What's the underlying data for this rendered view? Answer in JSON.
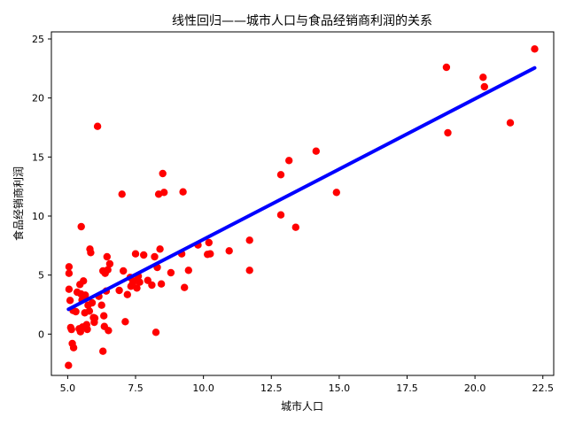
{
  "chart_data": {
    "type": "scatter",
    "title": "线性回归——城市人口与食品经销商利润的关系",
    "xlabel": "城市人口",
    "ylabel": "食品经销商利润",
    "xlim": [
      4.4,
      22.9
    ],
    "ylim": [
      -3.5,
      25.6
    ],
    "xticks": [
      5.0,
      7.5,
      10.0,
      12.5,
      15.0,
      17.5,
      20.0,
      22.5
    ],
    "xtick_labels": [
      "5.0",
      "7.5",
      "10.0",
      "12.5",
      "15.0",
      "17.5",
      "20.0",
      "22.5"
    ],
    "yticks": [
      0,
      5,
      10,
      15,
      20,
      25
    ],
    "ytick_labels": [
      "0",
      "5",
      "10",
      "15",
      "20",
      "25"
    ],
    "grid": false,
    "colors": {
      "points": "#ff0000",
      "line": "#0000ff"
    },
    "scatter_points": [
      [
        5.03,
        -2.65
      ],
      [
        5.05,
        3.8
      ],
      [
        5.05,
        5.7
      ],
      [
        5.05,
        5.15
      ],
      [
        5.09,
        2.85
      ],
      [
        5.11,
        0.56
      ],
      [
        5.14,
        0.39
      ],
      [
        5.17,
        -0.8
      ],
      [
        5.2,
        2.0
      ],
      [
        5.22,
        -1.15
      ],
      [
        5.3,
        1.9
      ],
      [
        5.35,
        3.55
      ],
      [
        5.42,
        0.45
      ],
      [
        5.45,
        4.2
      ],
      [
        5.47,
        0.2
      ],
      [
        5.49,
        3.4
      ],
      [
        5.5,
        9.1
      ],
      [
        5.53,
        2.9
      ],
      [
        5.55,
        0.6
      ],
      [
        5.58,
        4.5
      ],
      [
        5.63,
        1.8
      ],
      [
        5.65,
        3.3
      ],
      [
        5.7,
        0.8
      ],
      [
        5.72,
        0.4
      ],
      [
        5.75,
        2.45
      ],
      [
        5.8,
        1.95
      ],
      [
        5.82,
        7.2
      ],
      [
        5.85,
        6.9
      ],
      [
        5.9,
        2.65
      ],
      [
        5.95,
        1.4
      ],
      [
        5.98,
        1.0
      ],
      [
        6.0,
        1.35
      ],
      [
        6.1,
        17.6
      ],
      [
        6.15,
        3.2
      ],
      [
        6.25,
        2.45
      ],
      [
        6.3,
        5.35
      ],
      [
        6.3,
        -1.45
      ],
      [
        6.33,
        1.55
      ],
      [
        6.35,
        0.65
      ],
      [
        6.38,
        5.15
      ],
      [
        6.42,
        3.65
      ],
      [
        6.45,
        6.55
      ],
      [
        6.48,
        5.45
      ],
      [
        6.5,
        0.3
      ],
      [
        6.55,
        5.95
      ],
      [
        6.9,
        3.7
      ],
      [
        7.0,
        11.85
      ],
      [
        7.05,
        5.35
      ],
      [
        7.12,
        1.05
      ],
      [
        7.2,
        3.35
      ],
      [
        7.3,
        4.8
      ],
      [
        7.33,
        4.05
      ],
      [
        7.4,
        4.35
      ],
      [
        7.45,
        4.5
      ],
      [
        7.5,
        6.8
      ],
      [
        7.55,
        3.9
      ],
      [
        7.6,
        4.9
      ],
      [
        7.65,
        4.4
      ],
      [
        7.8,
        6.7
      ],
      [
        7.95,
        4.55
      ],
      [
        8.1,
        4.15
      ],
      [
        8.2,
        6.55
      ],
      [
        8.25,
        0.15
      ],
      [
        8.3,
        5.65
      ],
      [
        8.35,
        11.85
      ],
      [
        8.4,
        7.2
      ],
      [
        8.45,
        4.25
      ],
      [
        8.5,
        13.6
      ],
      [
        8.55,
        12.0
      ],
      [
        8.8,
        5.2
      ],
      [
        9.2,
        6.8
      ],
      [
        9.25,
        12.05
      ],
      [
        9.3,
        3.95
      ],
      [
        9.45,
        5.4
      ],
      [
        9.8,
        7.55
      ],
      [
        10.15,
        6.75
      ],
      [
        10.2,
        7.75
      ],
      [
        10.25,
        6.8
      ],
      [
        10.95,
        7.05
      ],
      [
        11.7,
        7.95
      ],
      [
        11.7,
        5.4
      ],
      [
        12.85,
        13.5
      ],
      [
        12.85,
        10.1
      ],
      [
        13.15,
        14.7
      ],
      [
        13.4,
        9.05
      ],
      [
        14.15,
        15.5
      ],
      [
        14.9,
        12.0
      ],
      [
        18.95,
        22.6
      ],
      [
        19.0,
        17.05
      ],
      [
        20.3,
        21.75
      ],
      [
        20.35,
        20.95
      ],
      [
        21.3,
        17.9
      ],
      [
        22.2,
        24.15
      ]
    ],
    "regression_line": {
      "x": [
        5.03,
        22.2
      ],
      "y": [
        2.1,
        22.55
      ]
    }
  }
}
